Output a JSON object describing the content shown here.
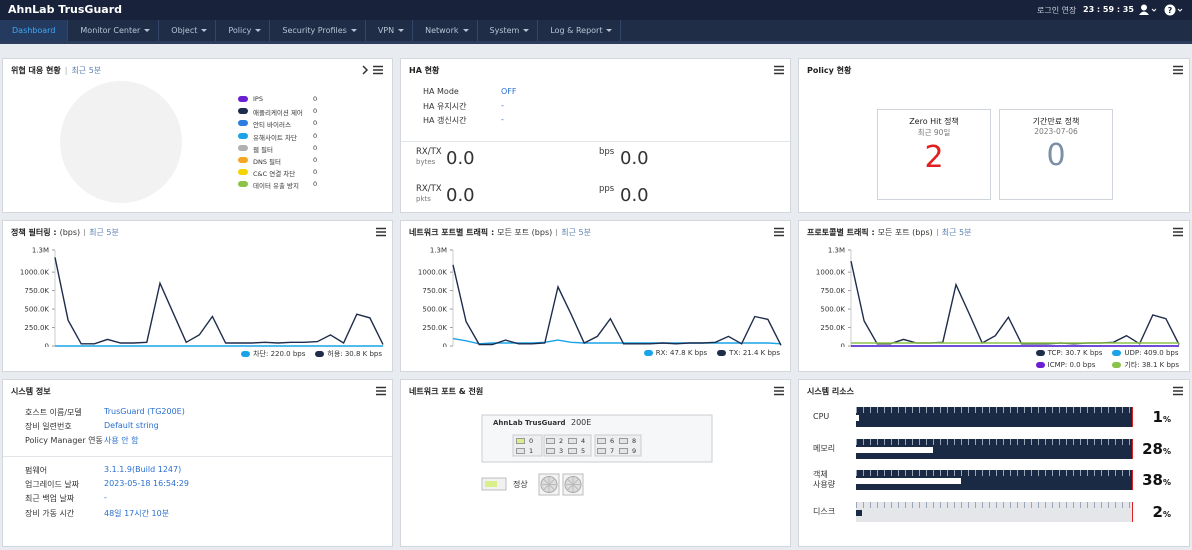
{
  "header": {
    "brand": "AhnLab TrusGuard",
    "login_extend": "로그인 연장",
    "clock": "23 : 59 : 35"
  },
  "nav": [
    "Dashboard",
    "Monitor Center",
    "Object",
    "Policy",
    "Security Profiles",
    "VPN",
    "Network",
    "System",
    "Log & Report"
  ],
  "threat": {
    "title": "위협 대응 현황",
    "period": "최근 5분",
    "items": [
      {
        "name": "IPS",
        "color": "#6a1fd0",
        "value": 0
      },
      {
        "name": "애플리케이션 제어",
        "color": "#1f2d4d",
        "value": 0
      },
      {
        "name": "안티 바이러스",
        "color": "#2a7de1",
        "value": 0
      },
      {
        "name": "유해사이트 차단",
        "color": "#1aa3e8",
        "value": 0
      },
      {
        "name": "웹 필터",
        "color": "#b0b0b0",
        "value": 0
      },
      {
        "name": "DNS 필터",
        "color": "#f5a623",
        "value": 0
      },
      {
        "name": "C&C 연결 차단",
        "color": "#f5d400",
        "value": 0
      },
      {
        "name": "데이터 유출 방지",
        "color": "#8bc34a",
        "value": 0
      }
    ]
  },
  "ha": {
    "title": "HA 현황",
    "rows": [
      {
        "label": "HA Mode",
        "value": "OFF"
      },
      {
        "label": "HA 유지시간",
        "value": "-"
      },
      {
        "label": "HA 갱신시간",
        "value": "-"
      }
    ],
    "stats": [
      {
        "label": "RX/TX",
        "unit": "bytes",
        "value": "0.0"
      },
      {
        "label": "bps",
        "value": "0.0"
      },
      {
        "label": "RX/TX",
        "unit": "pkts",
        "value": "0.0"
      },
      {
        "label": "pps",
        "value": "0.0"
      }
    ]
  },
  "policy": {
    "title": "Policy 현황",
    "cards": [
      {
        "title": "Zero Hit 정책",
        "subtitle": "최근 90일",
        "value": 2,
        "color": "#e02020"
      },
      {
        "title": "기간만료 정책",
        "subtitle": "2023-07-06",
        "value": 0,
        "color": "#7b8fa6"
      }
    ]
  },
  "charts": [
    {
      "type": "line",
      "title": "정책 필터링 :",
      "subtitle": "(bps)",
      "period": "최근 5분",
      "ylim": [
        0,
        1300000
      ],
      "yticks": [
        0,
        {
          "value": 250000,
          "label": "250.0K"
        },
        {
          "value": 500000,
          "label": "500.0K"
        },
        {
          "value": 750000,
          "label": "750.0K"
        },
        {
          "value": 1000000,
          "label": "1000.0K"
        },
        {
          "value": 1300000,
          "label": "1.3M"
        }
      ],
      "series": [
        {
          "name": "차단: 220.0 bps",
          "color": "#1aa3e8",
          "values": [
            0,
            0,
            0,
            0,
            0,
            0,
            0,
            0,
            0,
            0,
            0,
            0,
            0,
            0,
            0,
            0,
            0,
            0,
            0,
            0,
            0,
            0,
            0,
            0,
            0,
            0
          ]
        },
        {
          "name": "허용: 30.8 K bps",
          "color": "#1f2d4d",
          "values": [
            1200000,
            350000,
            30000,
            30000,
            90000,
            40000,
            40000,
            50000,
            850000,
            450000,
            50000,
            150000,
            400000,
            40000,
            40000,
            40000,
            50000,
            40000,
            50000,
            50000,
            60000,
            150000,
            40000,
            430000,
            380000,
            20000
          ]
        }
      ]
    },
    {
      "type": "line",
      "title": "네트워크 포트별 트래픽 :",
      "subtitle": "모든 포트 (bps)",
      "period": "최근 5분",
      "ylim": [
        0,
        1300000
      ],
      "yticks": [
        0,
        {
          "value": 250000,
          "label": "250.0K"
        },
        {
          "value": 500000,
          "label": "500.0K"
        },
        {
          "value": 750000,
          "label": "750.0K"
        },
        {
          "value": 1000000,
          "label": "1000.0K"
        },
        {
          "value": 1300000,
          "label": "1.3M"
        }
      ],
      "series": [
        {
          "name": "RX: 47.8 K bps",
          "color": "#1aa3e8",
          "values": [
            100000,
            70000,
            30000,
            40000,
            40000,
            40000,
            40000,
            50000,
            80000,
            50000,
            40000,
            40000,
            40000,
            40000,
            40000,
            40000,
            40000,
            40000,
            40000,
            40000,
            40000,
            40000,
            40000,
            40000,
            40000,
            30000
          ]
        },
        {
          "name": "TX: 21.4 K bps",
          "color": "#1f2d4d",
          "values": [
            1100000,
            330000,
            20000,
            20000,
            80000,
            30000,
            30000,
            40000,
            800000,
            430000,
            40000,
            130000,
            370000,
            30000,
            30000,
            30000,
            40000,
            30000,
            40000,
            40000,
            50000,
            130000,
            30000,
            400000,
            360000,
            10000
          ]
        }
      ]
    },
    {
      "type": "line",
      "title": "프로토콜별 트래픽 :",
      "subtitle": "모든 포트 (bps)",
      "period": "최근 5분",
      "ylim": [
        0,
        1300000
      ],
      "yticks": [
        0,
        {
          "value": 250000,
          "label": "250.0K"
        },
        {
          "value": 500000,
          "label": "500.0K"
        },
        {
          "value": 750000,
          "label": "750.0K"
        },
        {
          "value": 1000000,
          "label": "1000.0K"
        },
        {
          "value": 1300000,
          "label": "1.3M"
        }
      ],
      "series": [
        {
          "name": "TCP: 30.7 K bps",
          "color": "#1f2d4d",
          "values": [
            1150000,
            340000,
            30000,
            30000,
            90000,
            40000,
            40000,
            50000,
            830000,
            440000,
            40000,
            140000,
            390000,
            30000,
            30000,
            30000,
            40000,
            30000,
            40000,
            40000,
            50000,
            140000,
            30000,
            420000,
            370000,
            20000
          ]
        },
        {
          "name": "UDP: 409.0 bps",
          "color": "#1aa3e8",
          "values": [
            0,
            0,
            0,
            0,
            0,
            0,
            0,
            0,
            0,
            0,
            0,
            0,
            0,
            0,
            0,
            0,
            0,
            0,
            0,
            0,
            0,
            0,
            0,
            0,
            0,
            0
          ]
        },
        {
          "name": "ICMP: 0.0 bps",
          "color": "#6a1fd0",
          "values": [
            0,
            0,
            0,
            0,
            0,
            0,
            0,
            0,
            0,
            0,
            0,
            0,
            0,
            0,
            0,
            0,
            0,
            0,
            0,
            0,
            0,
            0,
            0,
            0,
            0,
            0
          ]
        },
        {
          "name": "기타: 38.1 K bps",
          "color": "#8bc34a",
          "values": [
            40000,
            40000,
            40000,
            40000,
            40000,
            40000,
            40000,
            40000,
            40000,
            40000,
            40000,
            40000,
            40000,
            40000,
            40000,
            40000,
            40000,
            40000,
            40000,
            40000,
            40000,
            40000,
            40000,
            40000,
            40000,
            40000
          ]
        }
      ]
    }
  ],
  "system_info": {
    "title": "시스템 정보",
    "groups": [
      [
        {
          "label": "호스트 이름/모델",
          "value": "TrusGuard (TG200E)"
        },
        {
          "label": "장비 일련번호",
          "value": "Default string"
        },
        {
          "label": "Policy Manager 연동",
          "value": "사용 안 함"
        }
      ],
      [
        {
          "label": "펌웨어",
          "value": "3.1.1.9(Build 1247)"
        },
        {
          "label": "업그레이드 날짜",
          "value": "2023-05-18 16:54:29"
        },
        {
          "label": "최근 백업 날짜",
          "value": "-"
        },
        {
          "label": "장비 가동 시간",
          "value": "48일 17시간 10분"
        }
      ]
    ]
  },
  "ports": {
    "title": "네트워크 포트 & 전원",
    "vendor": "AhnLab TrusGuard",
    "model": "200E",
    "ports": [
      {
        "label": "0",
        "up": true
      },
      {
        "label": "1",
        "up": false
      },
      {
        "label": "2",
        "up": false
      },
      {
        "label": "3",
        "up": false
      },
      {
        "label": "4",
        "up": false
      },
      {
        "label": "5",
        "up": false
      },
      {
        "label": "6",
        "up": false
      },
      {
        "label": "7",
        "up": false
      },
      {
        "label": "8",
        "up": false
      },
      {
        "label": "9",
        "up": false
      }
    ],
    "status": "정상"
  },
  "resources": {
    "title": "시스템 리소스",
    "range": [
      0,
      100
    ],
    "unit": "%",
    "items": [
      {
        "label": "CPU",
        "value": 1,
        "track_color": "#1b2a44",
        "fill_color": "#ffffff"
      },
      {
        "label": "메모리",
        "value": 28,
        "track_color": "#1b2a44",
        "fill_color": "#ffffff"
      },
      {
        "label": "객체\n사용량",
        "value": 38,
        "track_color": "#1b2a44",
        "fill_color": "#ffffff"
      },
      {
        "label": "디스크",
        "value": 2,
        "track_color": "#e4e6e9",
        "fill_color": "#1b2a44"
      }
    ]
  }
}
